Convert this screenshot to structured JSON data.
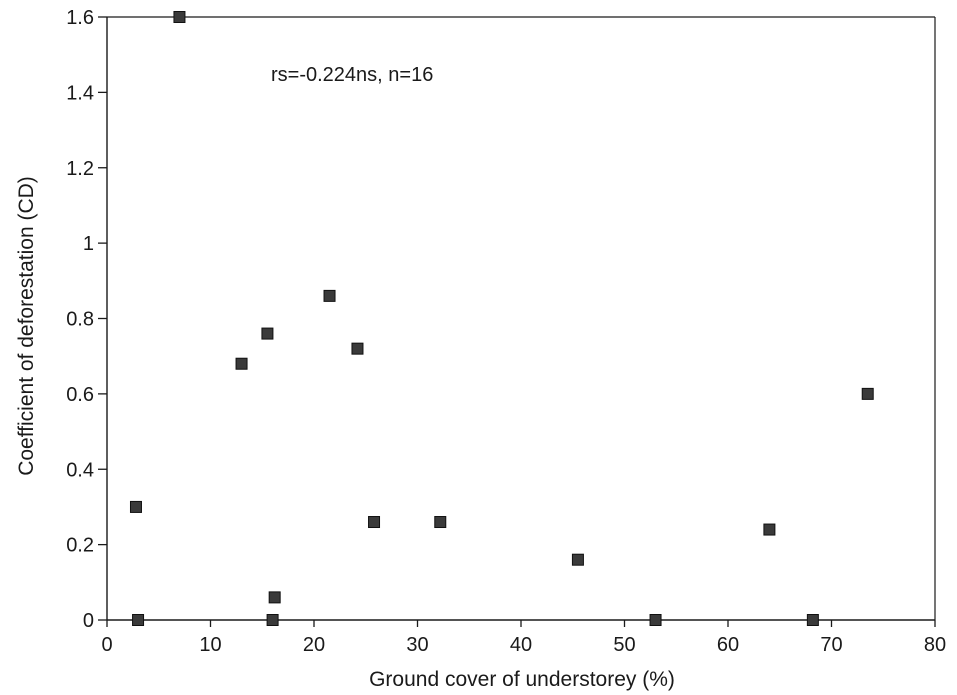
{
  "chart_data": {
    "type": "scatter",
    "title": "",
    "xlabel": "Ground cover of understorey (%)",
    "ylabel": "Coefficient of deforestation (CD)",
    "xlim": [
      0,
      80
    ],
    "ylim": [
      0,
      1.6
    ],
    "x_ticks": [
      0,
      10,
      20,
      30,
      40,
      50,
      60,
      70,
      80
    ],
    "x_tick_labels": [
      "0",
      "10",
      "20",
      "30",
      "40",
      "50",
      "60",
      "70",
      "80"
    ],
    "y_ticks": [
      0,
      0.2,
      0.4,
      0.6,
      0.8,
      1.0,
      1.2,
      1.4,
      1.6
    ],
    "y_tick_labels": [
      "0",
      "0.2",
      "0.4",
      "0.6",
      "0.8",
      "1",
      "1.2",
      "1.4",
      "1.6"
    ],
    "grid": false,
    "legend": "none",
    "annotation": "rs=-0.224ns, n=16",
    "marker": "square",
    "marker_color": "#3a3a3a",
    "points": [
      {
        "x": 7,
        "y": 1.6
      },
      {
        "x": 21.5,
        "y": 0.86
      },
      {
        "x": 15.5,
        "y": 0.76
      },
      {
        "x": 24.2,
        "y": 0.72
      },
      {
        "x": 13,
        "y": 0.68
      },
      {
        "x": 73.5,
        "y": 0.6
      },
      {
        "x": 2.8,
        "y": 0.3
      },
      {
        "x": 25.8,
        "y": 0.26
      },
      {
        "x": 32.2,
        "y": 0.26
      },
      {
        "x": 64,
        "y": 0.24
      },
      {
        "x": 45.5,
        "y": 0.16
      },
      {
        "x": 16.2,
        "y": 0.06
      },
      {
        "x": 3,
        "y": 0.0
      },
      {
        "x": 16,
        "y": 0.0
      },
      {
        "x": 53,
        "y": 0.0
      },
      {
        "x": 68.2,
        "y": 0.0
      }
    ]
  }
}
